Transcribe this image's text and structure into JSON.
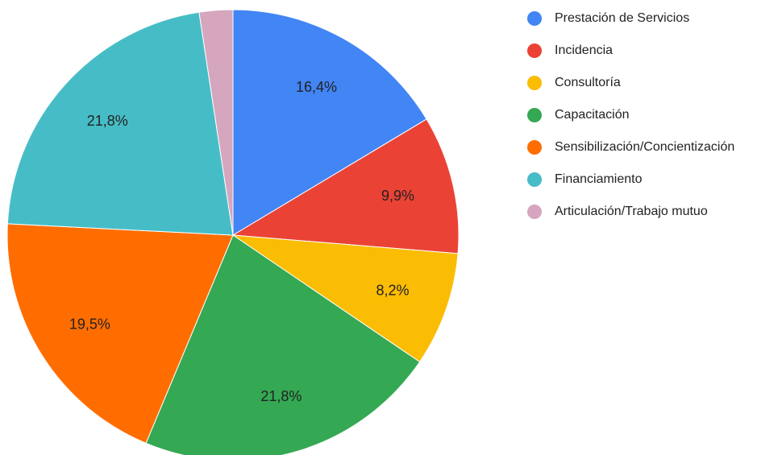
{
  "chart_data": {
    "type": "pie",
    "categories": [
      "Prestación de Servicios",
      "Incidencia",
      "Consultoría",
      "Capacitación",
      "Sensibilización/Concientización",
      "Financiamiento",
      "Articulación/Trabajo mutuo"
    ],
    "values": [
      16.4,
      9.9,
      8.2,
      21.8,
      19.5,
      21.8,
      2.4
    ],
    "value_labels": [
      "16,4%",
      "9,9%",
      "8,2%",
      "21,8%",
      "19,5%",
      "21,8%",
      null
    ],
    "colors": [
      "#4285f4",
      "#ea4335",
      "#fbbc04",
      "#34a853",
      "#ff6d01",
      "#46bdc6",
      "#d5a6bd"
    ]
  }
}
